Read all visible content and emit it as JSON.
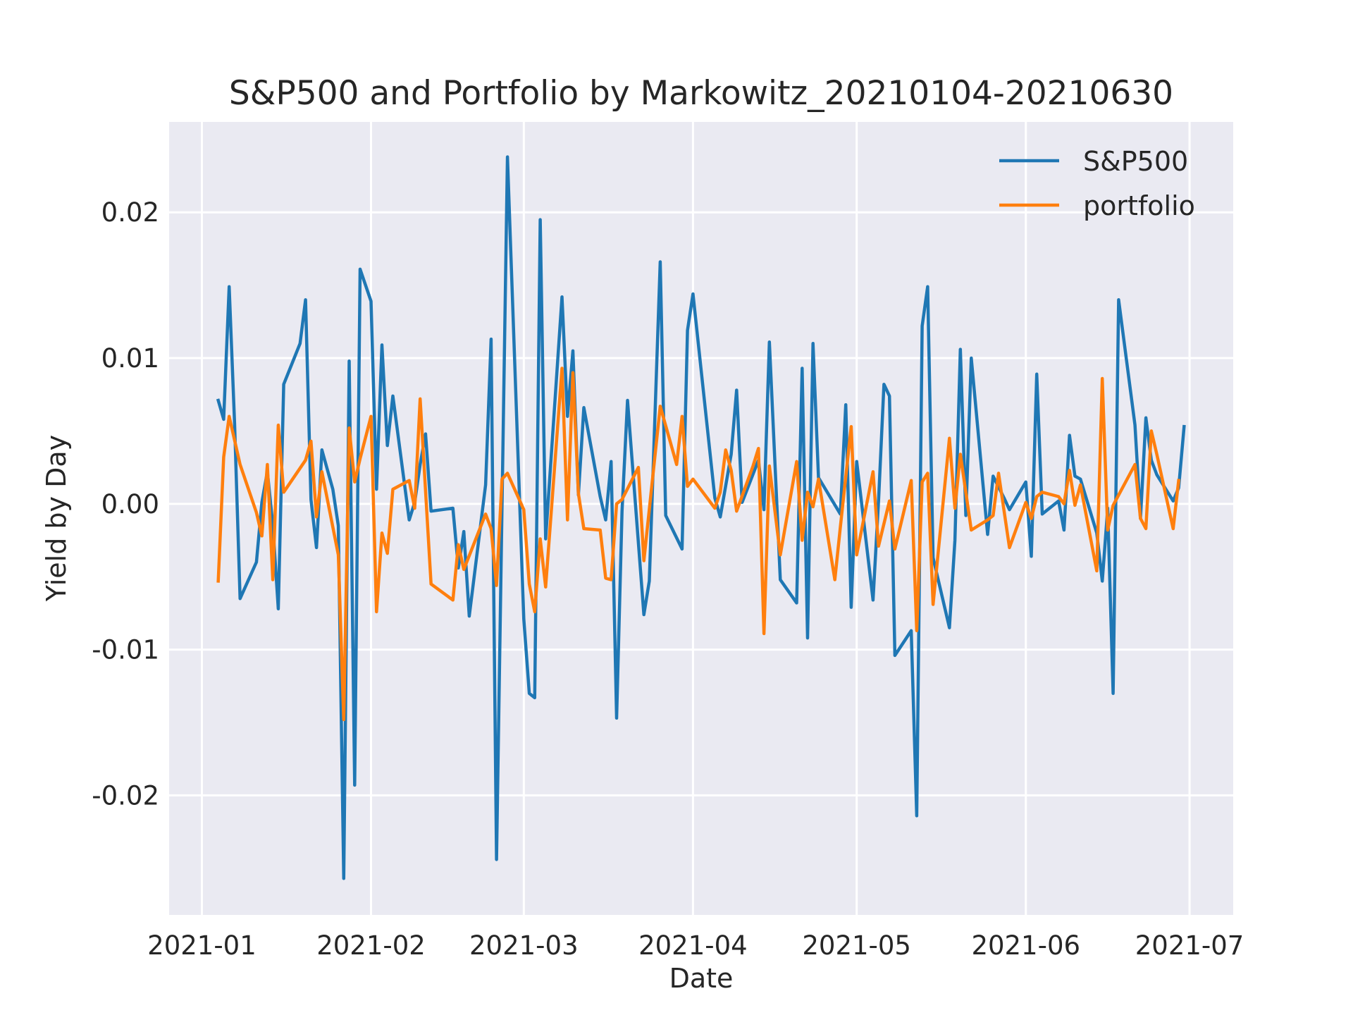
{
  "chart_data": {
    "type": "line",
    "title": "S&P500 and Portfolio by Markowitz_20210104-20210630",
    "xlabel": "Date",
    "ylabel": "Yield by Day",
    "x_ticks": [
      "2021-01",
      "2021-02",
      "2021-03",
      "2021-04",
      "2021-05",
      "2021-06",
      "2021-07"
    ],
    "x_tick_dates": [
      "2021-01-01",
      "2021-02-01",
      "2021-03-01",
      "2021-04-01",
      "2021-05-01",
      "2021-06-01",
      "2021-07-01"
    ],
    "y_ticks": [
      "0.02",
      "0.01",
      "0.00",
      "-0.01",
      "-0.02"
    ],
    "y_tick_values": [
      0.02,
      0.01,
      0.0,
      -0.01,
      -0.02
    ],
    "xlim": [
      "2020-12-26",
      "2021-07-09"
    ],
    "ylim": [
      -0.0282,
      0.0262
    ],
    "grid": true,
    "legend_position": "top-right",
    "colors": {
      "background": "#eaeaf2",
      "grid": "#ffffff",
      "sp500": "#1f77b4",
      "portfolio": "#ff7f0e"
    },
    "series": [
      {
        "name": "S&P500",
        "color": "#1f77b4",
        "points": [
          [
            "2021-01-04",
            0.0071
          ],
          [
            "2021-01-05",
            0.0058
          ],
          [
            "2021-01-06",
            0.0149
          ],
          [
            "2021-01-07",
            0.0055
          ],
          [
            "2021-01-08",
            -0.0065
          ],
          [
            "2021-01-11",
            -0.004
          ],
          [
            "2021-01-12",
            0.0001
          ],
          [
            "2021-01-13",
            0.0022
          ],
          [
            "2021-01-14",
            -0.0014
          ],
          [
            "2021-01-15",
            -0.0072
          ],
          [
            "2021-01-16",
            0.0082
          ],
          [
            "2021-01-19",
            0.011
          ],
          [
            "2021-01-20",
            0.014
          ],
          [
            "2021-01-21",
            0.0003
          ],
          [
            "2021-01-22",
            -0.003
          ],
          [
            "2021-01-23",
            0.0037
          ],
          [
            "2021-01-25",
            0.001
          ],
          [
            "2021-01-26",
            -0.0015
          ],
          [
            "2021-01-27",
            -0.0257
          ],
          [
            "2021-01-28",
            0.0098
          ],
          [
            "2021-01-29",
            -0.0193
          ],
          [
            "2021-01-30",
            0.0161
          ],
          [
            "2021-02-01",
            0.0139
          ],
          [
            "2021-02-02",
            0.001
          ],
          [
            "2021-02-03",
            0.0109
          ],
          [
            "2021-02-04",
            0.004
          ],
          [
            "2021-02-05",
            0.0074
          ],
          [
            "2021-02-08",
            -0.0011
          ],
          [
            "2021-02-09",
            0.0001
          ],
          [
            "2021-02-10",
            0.0027
          ],
          [
            "2021-02-11",
            0.0048
          ],
          [
            "2021-02-12",
            -0.0005
          ],
          [
            "2021-02-16",
            -0.0003
          ],
          [
            "2021-02-17",
            -0.0044
          ],
          [
            "2021-02-18",
            -0.0019
          ],
          [
            "2021-02-19",
            -0.0077
          ],
          [
            "2021-02-22",
            0.0013
          ],
          [
            "2021-02-23",
            0.0113
          ],
          [
            "2021-02-24",
            -0.0244
          ],
          [
            "2021-02-26",
            0.0238
          ],
          [
            "2021-03-01",
            -0.0079
          ],
          [
            "2021-03-02",
            -0.013
          ],
          [
            "2021-03-03",
            -0.0133
          ],
          [
            "2021-03-04",
            0.0195
          ],
          [
            "2021-03-05",
            -0.0024
          ],
          [
            "2021-03-08",
            0.0142
          ],
          [
            "2021-03-09",
            0.006
          ],
          [
            "2021-03-10",
            0.0105
          ],
          [
            "2021-03-11",
            0.0006
          ],
          [
            "2021-03-12",
            0.0066
          ],
          [
            "2021-03-15",
            0.0005
          ],
          [
            "2021-03-16",
            -0.0011
          ],
          [
            "2021-03-17",
            0.0029
          ],
          [
            "2021-03-18",
            -0.0147
          ],
          [
            "2021-03-19",
            -0.0005
          ],
          [
            "2021-03-20",
            0.0071
          ],
          [
            "2021-03-23",
            -0.0076
          ],
          [
            "2021-03-24",
            -0.0053
          ],
          [
            "2021-03-26",
            0.0166
          ],
          [
            "2021-03-27",
            -0.0008
          ],
          [
            "2021-03-30",
            -0.0031
          ],
          [
            "2021-03-31",
            0.0119
          ],
          [
            "2021-04-01",
            0.0144
          ],
          [
            "2021-04-05",
            0.0004
          ],
          [
            "2021-04-06",
            -0.0009
          ],
          [
            "2021-04-08",
            0.0034
          ],
          [
            "2021-04-09",
            0.0078
          ],
          [
            "2021-04-10",
            0.0001
          ],
          [
            "2021-04-13",
            0.003
          ],
          [
            "2021-04-14",
            -0.0004
          ],
          [
            "2021-04-15",
            0.0111
          ],
          [
            "2021-04-17",
            -0.0052
          ],
          [
            "2021-04-20",
            -0.0068
          ],
          [
            "2021-04-21",
            0.0093
          ],
          [
            "2021-04-22",
            -0.0092
          ],
          [
            "2021-04-23",
            0.011
          ],
          [
            "2021-04-24",
            0.0018
          ],
          [
            "2021-04-28",
            -0.0007
          ],
          [
            "2021-04-29",
            0.0068
          ],
          [
            "2021-04-30",
            -0.0071
          ],
          [
            "2021-05-01",
            0.0029
          ],
          [
            "2021-05-04",
            -0.0066
          ],
          [
            "2021-05-05",
            0.0002
          ],
          [
            "2021-05-06",
            0.0082
          ],
          [
            "2021-05-07",
            0.0074
          ],
          [
            "2021-05-08",
            -0.0104
          ],
          [
            "2021-05-11",
            -0.0087
          ],
          [
            "2021-05-12",
            -0.0214
          ],
          [
            "2021-05-13",
            0.0122
          ],
          [
            "2021-05-14",
            0.0149
          ],
          [
            "2021-05-15",
            -0.0037
          ],
          [
            "2021-05-18",
            -0.0085
          ],
          [
            "2021-05-19",
            -0.0025
          ],
          [
            "2021-05-20",
            0.0106
          ],
          [
            "2021-05-21",
            -0.0008
          ],
          [
            "2021-05-22",
            0.01
          ],
          [
            "2021-05-25",
            -0.0021
          ],
          [
            "2021-05-26",
            0.0019
          ],
          [
            "2021-05-28",
            0.0004
          ],
          [
            "2021-05-29",
            -0.0004
          ],
          [
            "2021-06-01",
            0.0015
          ],
          [
            "2021-06-02",
            -0.0036
          ],
          [
            "2021-06-03",
            0.0089
          ],
          [
            "2021-06-04",
            -0.0007
          ],
          [
            "2021-06-07",
            0.0002
          ],
          [
            "2021-06-08",
            -0.0018
          ],
          [
            "2021-06-09",
            0.0047
          ],
          [
            "2021-06-10",
            0.0019
          ],
          [
            "2021-06-11",
            0.0017
          ],
          [
            "2021-06-14",
            -0.002
          ],
          [
            "2021-06-15",
            -0.0053
          ],
          [
            "2021-06-16",
            -0.0003
          ],
          [
            "2021-06-17",
            -0.013
          ],
          [
            "2021-06-18",
            0.014
          ],
          [
            "2021-06-21",
            0.0054
          ],
          [
            "2021-06-22",
            -0.001
          ],
          [
            "2021-06-23",
            0.0059
          ],
          [
            "2021-06-24",
            0.003
          ],
          [
            "2021-06-25",
            0.002
          ],
          [
            "2021-06-28",
            0.0002
          ],
          [
            "2021-06-29",
            0.0011
          ],
          [
            "2021-06-30",
            0.0053
          ]
        ]
      },
      {
        "name": "portfolio",
        "color": "#ff7f0e",
        "points": [
          [
            "2021-01-04",
            -0.0053
          ],
          [
            "2021-01-05",
            0.0032
          ],
          [
            "2021-01-06",
            0.006
          ],
          [
            "2021-01-08",
            0.0027
          ],
          [
            "2021-01-11",
            -0.0006
          ],
          [
            "2021-01-12",
            -0.0022
          ],
          [
            "2021-01-13",
            0.0027
          ],
          [
            "2021-01-14",
            -0.0052
          ],
          [
            "2021-01-15",
            0.0054
          ],
          [
            "2021-01-16",
            0.0008
          ],
          [
            "2021-01-20",
            0.003
          ],
          [
            "2021-01-21",
            0.0043
          ],
          [
            "2021-01-22",
            -0.0009
          ],
          [
            "2021-01-23",
            0.0022
          ],
          [
            "2021-01-26",
            -0.0035
          ],
          [
            "2021-01-27",
            -0.0148
          ],
          [
            "2021-01-28",
            0.0052
          ],
          [
            "2021-01-29",
            0.0015
          ],
          [
            "2021-01-30",
            0.0031
          ],
          [
            "2021-02-01",
            0.006
          ],
          [
            "2021-02-02",
            -0.0074
          ],
          [
            "2021-02-03",
            -0.002
          ],
          [
            "2021-02-04",
            -0.0034
          ],
          [
            "2021-02-05",
            0.001
          ],
          [
            "2021-02-08",
            0.0016
          ],
          [
            "2021-02-09",
            -0.0003
          ],
          [
            "2021-02-10",
            0.0072
          ],
          [
            "2021-02-12",
            -0.0055
          ],
          [
            "2021-02-16",
            -0.0066
          ],
          [
            "2021-02-17",
            -0.0028
          ],
          [
            "2021-02-18",
            -0.0045
          ],
          [
            "2021-02-22",
            -0.0007
          ],
          [
            "2021-02-23",
            -0.0017
          ],
          [
            "2021-02-24",
            -0.0056
          ],
          [
            "2021-02-25",
            0.0017
          ],
          [
            "2021-02-26",
            0.0021
          ],
          [
            "2021-03-01",
            -0.0004
          ],
          [
            "2021-03-02",
            -0.0055
          ],
          [
            "2021-03-03",
            -0.0074
          ],
          [
            "2021-03-04",
            -0.0024
          ],
          [
            "2021-03-05",
            -0.0057
          ],
          [
            "2021-03-08",
            0.0093
          ],
          [
            "2021-03-09",
            -0.0011
          ],
          [
            "2021-03-10",
            0.009
          ],
          [
            "2021-03-11",
            0.0007
          ],
          [
            "2021-03-12",
            -0.0017
          ],
          [
            "2021-03-15",
            -0.0018
          ],
          [
            "2021-03-16",
            -0.0051
          ],
          [
            "2021-03-17",
            -0.0052
          ],
          [
            "2021-03-18",
            0.0
          ],
          [
            "2021-03-19",
            0.0003
          ],
          [
            "2021-03-22",
            0.0025
          ],
          [
            "2021-03-23",
            -0.0039
          ],
          [
            "2021-03-26",
            0.0067
          ],
          [
            "2021-03-29",
            0.0027
          ],
          [
            "2021-03-30",
            0.006
          ],
          [
            "2021-03-31",
            0.0012
          ],
          [
            "2021-04-01",
            0.0017
          ],
          [
            "2021-04-05",
            -0.0003
          ],
          [
            "2021-04-06",
            0.0008
          ],
          [
            "2021-04-07",
            0.0037
          ],
          [
            "2021-04-08",
            0.0023
          ],
          [
            "2021-04-09",
            -0.0005
          ],
          [
            "2021-04-12",
            0.0026
          ],
          [
            "2021-04-13",
            0.0038
          ],
          [
            "2021-04-14",
            -0.0089
          ],
          [
            "2021-04-15",
            0.0026
          ],
          [
            "2021-04-17",
            -0.0035
          ],
          [
            "2021-04-20",
            0.0029
          ],
          [
            "2021-04-21",
            -0.0025
          ],
          [
            "2021-04-22",
            0.0008
          ],
          [
            "2021-04-23",
            -0.0002
          ],
          [
            "2021-04-24",
            0.0017
          ],
          [
            "2021-04-27",
            -0.0052
          ],
          [
            "2021-04-28",
            -0.0016
          ],
          [
            "2021-04-30",
            0.0053
          ],
          [
            "2021-05-01",
            -0.0035
          ],
          [
            "2021-05-04",
            0.0022
          ],
          [
            "2021-05-05",
            -0.0029
          ],
          [
            "2021-05-07",
            0.0002
          ],
          [
            "2021-05-08",
            -0.0031
          ],
          [
            "2021-05-11",
            0.0016
          ],
          [
            "2021-05-12",
            -0.0087
          ],
          [
            "2021-05-13",
            0.0015
          ],
          [
            "2021-05-14",
            0.0021
          ],
          [
            "2021-05-15",
            -0.0069
          ],
          [
            "2021-05-18",
            0.0045
          ],
          [
            "2021-05-19",
            -0.0003
          ],
          [
            "2021-05-20",
            0.0034
          ],
          [
            "2021-05-22",
            -0.0018
          ],
          [
            "2021-05-25",
            -0.0011
          ],
          [
            "2021-05-26",
            -0.0008
          ],
          [
            "2021-05-27",
            0.0021
          ],
          [
            "2021-05-29",
            -0.003
          ],
          [
            "2021-06-01",
            0.0001
          ],
          [
            "2021-06-02",
            -0.001
          ],
          [
            "2021-06-03",
            0.0005
          ],
          [
            "2021-06-04",
            0.0008
          ],
          [
            "2021-06-07",
            0.0005
          ],
          [
            "2021-06-08",
            0.0
          ],
          [
            "2021-06-09",
            0.0023
          ],
          [
            "2021-06-10",
            -0.0001
          ],
          [
            "2021-06-11",
            0.0013
          ],
          [
            "2021-06-14",
            -0.0046
          ],
          [
            "2021-06-15",
            0.0086
          ],
          [
            "2021-06-16",
            -0.0018
          ],
          [
            "2021-06-17",
            -0.0001
          ],
          [
            "2021-06-21",
            0.0027
          ],
          [
            "2021-06-22",
            -0.001
          ],
          [
            "2021-06-23",
            -0.0017
          ],
          [
            "2021-06-24",
            0.005
          ],
          [
            "2021-06-25",
            0.0034
          ],
          [
            "2021-06-28",
            -0.0017
          ],
          [
            "2021-06-29",
            0.0016
          ]
        ]
      }
    ]
  }
}
